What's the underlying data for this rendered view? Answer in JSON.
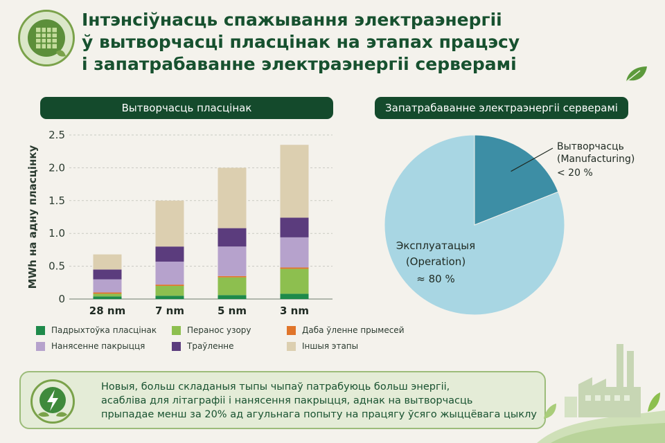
{
  "title": {
    "line1": "Інтэнсіўнасць спажывання электраэнергіі",
    "line2": "ў вытворчасці пласцінак на этапах працэсу",
    "line3": "і запатрабаванне электраэнергіі серверамі"
  },
  "colors": {
    "dark_green": "#144a2c",
    "title_green": "#17512f",
    "wafer_prep": "#1e8a4a",
    "pattern_transfer": "#8dbf4f",
    "doping": "#e0752b",
    "deposition": "#b6a2cc",
    "etching": "#5b3c7d",
    "other": "#dccfb0",
    "pie_manufacturing": "#3d8ea5",
    "pie_operation": "#a8d6e3"
  },
  "icons": [
    "wafer-chip-icon",
    "leaf-icon",
    "lightning-icon",
    "factory-icon"
  ],
  "bar_panel": {
    "header": "Вытворчасць пласцінак"
  },
  "pie_panel": {
    "header": "Запатрабаванне электраэнергіі серверамі"
  },
  "note": {
    "line1": "Новыя, больш складаныя тыпы чыпаў патрабуюць больш энергіі,",
    "line2": "асабліва для літаграфіі і нанясення пакрыцця, аднак на вытворчасць",
    "line3": "прыпадае менш за 20% ад агульнага попыту на працягу ўсяго жыццёвага цыклу"
  },
  "chart_data": [
    {
      "type": "bar",
      "stacked": true,
      "ylabel": "MWh на адну пласцінку",
      "xlabel": "",
      "ylim": [
        0,
        2.5
      ],
      "yticks": [
        "0",
        "0.5",
        "1.0",
        "1.5",
        "2.0",
        "2.5"
      ],
      "grid": true,
      "legend_position": "bottom",
      "categories": [
        "28 nm",
        "7 nm",
        "5 nm",
        "3 nm"
      ],
      "series": [
        {
          "name": "Падрыхтоўка пласцінак",
          "color": "#1e8a4a",
          "values": [
            0.04,
            0.05,
            0.06,
            0.08
          ]
        },
        {
          "name": "Перанос узору",
          "color": "#8dbf4f",
          "values": [
            0.04,
            0.15,
            0.27,
            0.38
          ]
        },
        {
          "name": "Даба ўленне прымесей",
          "color": "#e0752b",
          "values": [
            0.02,
            0.02,
            0.02,
            0.02
          ]
        },
        {
          "name": "Нанясенне пакрыцця",
          "color": "#b6a2cc",
          "values": [
            0.2,
            0.35,
            0.45,
            0.46
          ]
        },
        {
          "name": "Траўленне",
          "color": "#5b3c7d",
          "values": [
            0.15,
            0.23,
            0.28,
            0.3
          ]
        },
        {
          "name": "Іншыя этапы",
          "color": "#dccfb0",
          "values": [
            0.23,
            0.7,
            0.92,
            1.11
          ]
        }
      ]
    },
    {
      "type": "pie",
      "slices": [
        {
          "label_line1": "Вытворчасць",
          "label_line2": "(Manufacturing)",
          "value_label": "< 20 %",
          "value": 19,
          "color": "#3d8ea5"
        },
        {
          "label_line1": "Эксплуатацыя",
          "label_line2": "(Operation)",
          "value_label": "≈ 80 %",
          "value": 81,
          "color": "#a8d6e3"
        }
      ]
    }
  ]
}
